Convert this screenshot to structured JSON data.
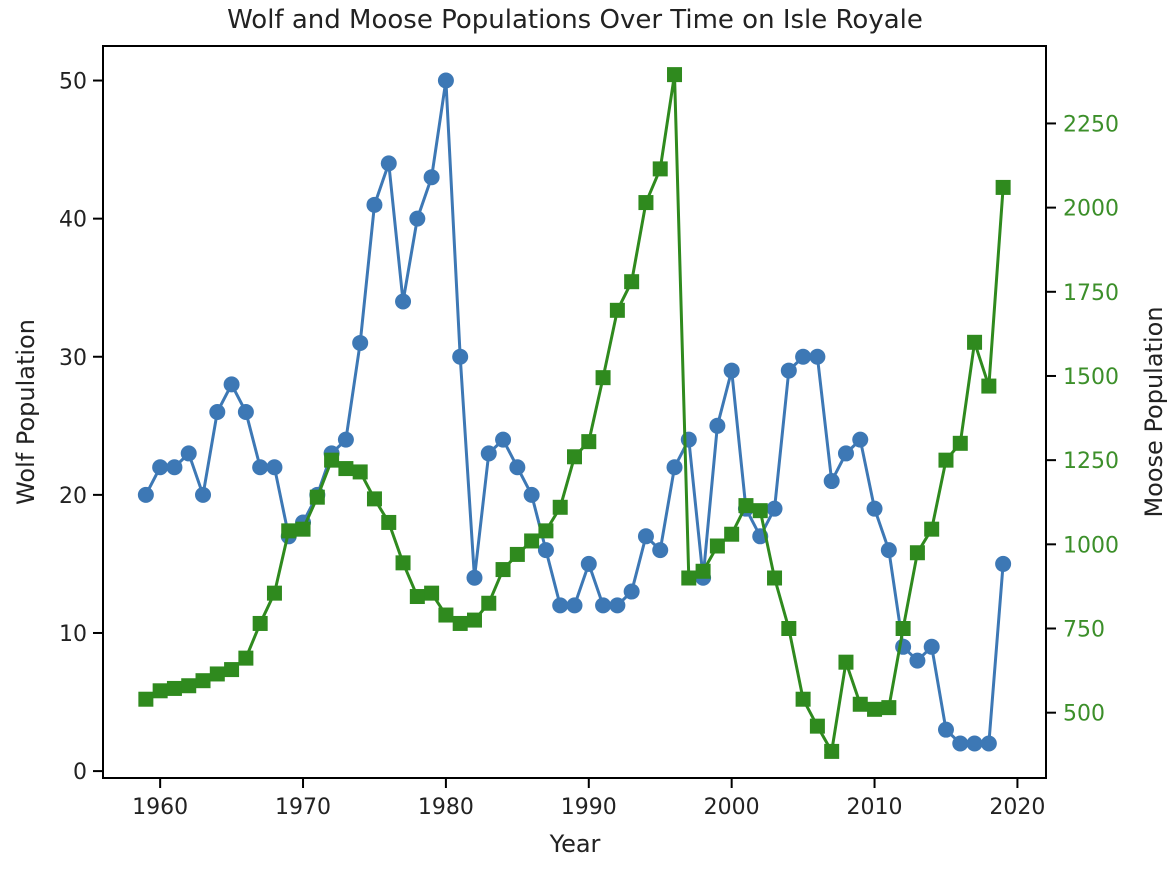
{
  "chart_data": {
    "type": "line",
    "title": "Wolf and Moose Populations Over Time on Isle Royale",
    "xlabel": "Year",
    "ylabel_left": "Wolf Population",
    "ylabel_right": "Moose Population",
    "xlim": [
      1956,
      2022
    ],
    "ylim_left": [
      -0.5,
      52.5
    ],
    "ylim_right": [
      306,
      2480
    ],
    "x_ticks": [
      1960,
      1970,
      1980,
      1990,
      2000,
      2010,
      2020
    ],
    "y_ticks_left": [
      0,
      10,
      20,
      30,
      40,
      50
    ],
    "y_ticks_right": [
      500,
      750,
      1000,
      1250,
      1500,
      1750,
      2000,
      2250
    ],
    "grid": false,
    "colors": {
      "wolf": "#3d78b5",
      "moose": "#2f8a1e",
      "right_axis_text": "#3c8f2a",
      "axis": "#000000",
      "text": "#222222"
    },
    "x": [
      1959,
      1960,
      1961,
      1962,
      1963,
      1964,
      1965,
      1966,
      1967,
      1968,
      1969,
      1970,
      1971,
      1972,
      1973,
      1974,
      1975,
      1976,
      1977,
      1978,
      1979,
      1980,
      1981,
      1982,
      1983,
      1984,
      1985,
      1986,
      1987,
      1988,
      1989,
      1990,
      1991,
      1992,
      1993,
      1994,
      1995,
      1996,
      1997,
      1998,
      1999,
      2000,
      2001,
      2002,
      2003,
      2004,
      2005,
      2006,
      2007,
      2008,
      2009,
      2010,
      2011,
      2012,
      2013,
      2014,
      2015,
      2016,
      2017,
      2018,
      2019
    ],
    "series": [
      {
        "axis": "left",
        "marker": "circle",
        "values": [
          20,
          22,
          22,
          23,
          20,
          26,
          28,
          26,
          22,
          22,
          17,
          18,
          20,
          23,
          24,
          31,
          41,
          44,
          34,
          40,
          43,
          50,
          30,
          14,
          23,
          24,
          22,
          20,
          16,
          12,
          12,
          15,
          12,
          12,
          13,
          17,
          16,
          22,
          24,
          14,
          25,
          29,
          19,
          17,
          19,
          29,
          30,
          30,
          21,
          23,
          24,
          19,
          16,
          9,
          8,
          9,
          3,
          2,
          2,
          2,
          15
        ]
      },
      {
        "axis": "right",
        "marker": "square",
        "values": [
          540,
          565,
          572,
          580,
          595,
          615,
          628,
          662,
          765,
          855,
          1040,
          1045,
          1140,
          1250,
          1225,
          1215,
          1135,
          1065,
          945,
          845,
          855,
          790,
          765,
          775,
          825,
          925,
          970,
          1010,
          1040,
          1110,
          1260,
          1305,
          1495,
          1695,
          1780,
          2015,
          2115,
          2395,
          900,
          920,
          995,
          1030,
          1115,
          1100,
          900,
          750,
          540,
          460,
          385,
          650,
          525,
          510,
          515,
          750,
          975,
          1045,
          1250,
          1300,
          1600,
          1470,
          2060
        ]
      }
    ]
  }
}
